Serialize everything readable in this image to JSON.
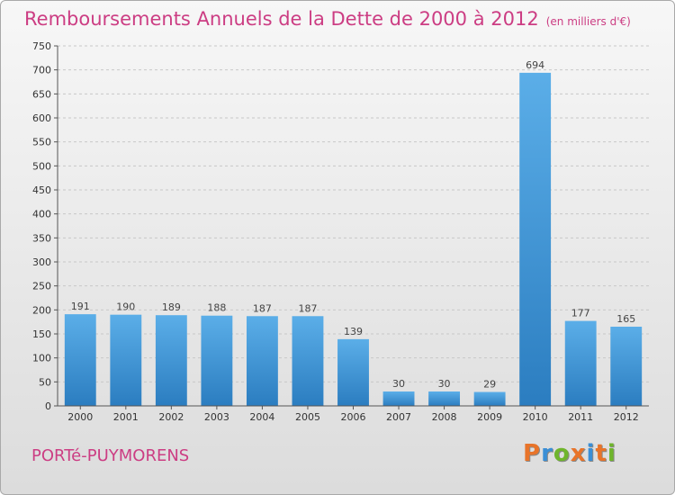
{
  "header": {
    "title": "Remboursements Annuels de la Dette de 2000 à 2012",
    "subtitle": "(en milliers d'€)"
  },
  "footer": {
    "commune": "PORTé-PUYMORENS",
    "logo": "Proxiti"
  },
  "colors": {
    "title": "#cc3d83",
    "bar_top": "#5baee8",
    "bar_bottom": "#2b7dc0",
    "grid": "#c8c8c8"
  },
  "chart_data": {
    "type": "bar",
    "title": "Remboursements Annuels de la Dette de 2000 à 2012",
    "subtitle": "(en milliers d'€)",
    "categories": [
      "2000",
      "2001",
      "2002",
      "2003",
      "2004",
      "2005",
      "2006",
      "2007",
      "2008",
      "2009",
      "2010",
      "2011",
      "2012"
    ],
    "values": [
      191,
      190,
      189,
      188,
      187,
      187,
      139,
      30,
      30,
      29,
      694,
      177,
      165
    ],
    "ylim": [
      0,
      750
    ],
    "yticks": [
      0,
      50,
      100,
      150,
      200,
      250,
      300,
      350,
      400,
      450,
      500,
      550,
      600,
      650,
      700,
      750
    ],
    "grid": true,
    "data_labels": true
  }
}
